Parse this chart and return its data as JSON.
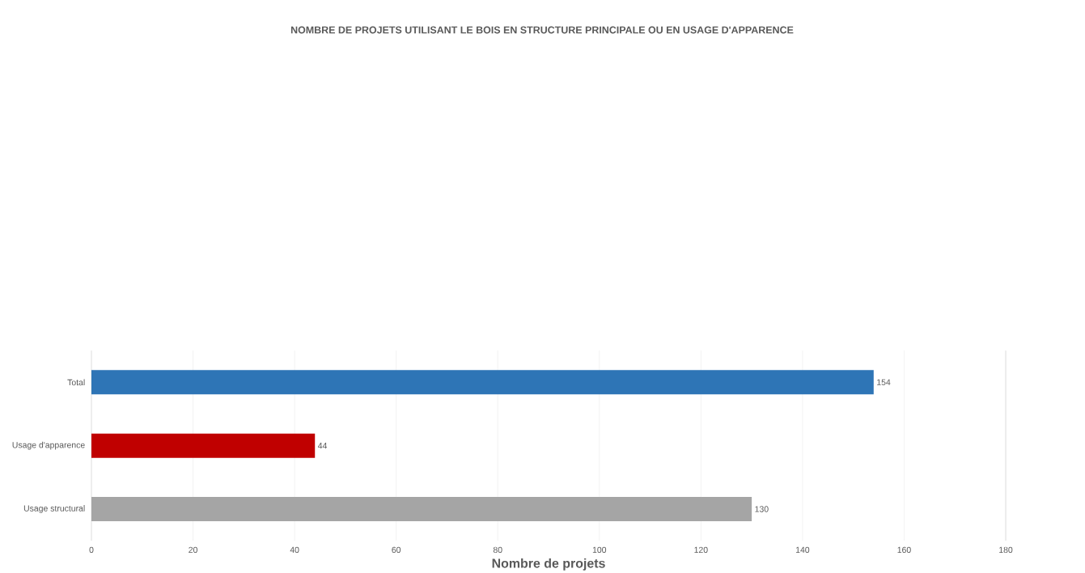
{
  "chart_data": {
    "type": "bar",
    "orientation": "horizontal",
    "title": "NOMBRE DE PROJETS UTILISANT LE BOIS EN STRUCTURE PRINCIPALE OU EN USAGE D'APPARENCE",
    "xlabel": "Nombre de projets",
    "categories": [
      "Total",
      "Usage d'apparence",
      "Usage structural"
    ],
    "values": [
      154,
      44,
      130
    ],
    "colors": [
      "#2e75b6",
      "#c00000",
      "#a5a5a5"
    ],
    "xlim": [
      0,
      180
    ],
    "xticks": [
      0,
      20,
      40,
      60,
      80,
      100,
      120,
      140,
      160,
      180
    ],
    "grid": "x",
    "data_labels": true
  }
}
